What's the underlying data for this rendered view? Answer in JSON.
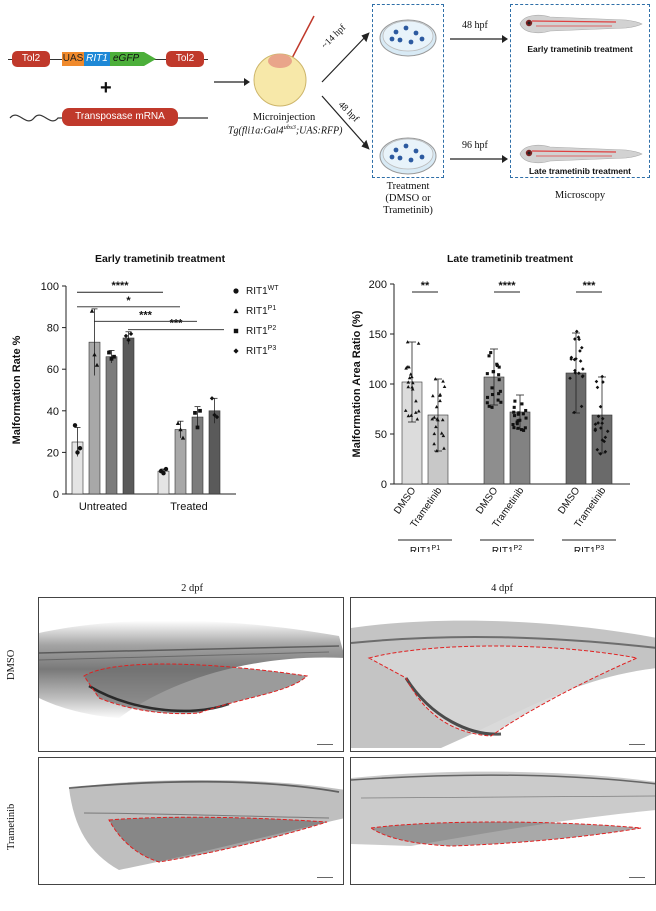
{
  "schematic": {
    "tol2_left": "Tol2",
    "uas": "UAS",
    "rit1": "RIT1",
    "egfp": "eGFP",
    "tol2_right": "Tol2",
    "plus": "+",
    "transposase": "Transposase mRNA",
    "microinjection": "Microinjection",
    "line_prefix": "Tg(fli1a:Gal4",
    "line_sup": "ubs3",
    "line_suffix": ";UAS:RFP)",
    "time_14": "~14 hpf",
    "time_48_diag": "48 hpf",
    "time_48": "48 hpf",
    "time_96": "96 hpf",
    "early_label": "Early trametinib treatment",
    "late_label": "Late trametinib treatment",
    "treatment_line1": "Treatment",
    "treatment_line2": "(DMSO or",
    "treatment_line3": "Trametinib)",
    "microscopy": "Microscopy"
  },
  "chart_data": [
    {
      "type": "bar",
      "title": "Early trametinib treatment",
      "ylabel": "Malformation Rate %",
      "ylim": [
        0,
        100
      ],
      "yticks": [
        "0",
        "20",
        "40",
        "60",
        "80",
        "100"
      ],
      "groups": [
        "Untreated",
        "Treated"
      ],
      "series": [
        {
          "name": "RIT1",
          "sup": "WT",
          "values": [
            25,
            11
          ],
          "err": [
            7,
            1
          ],
          "color": "#e4e4e4",
          "marker": "circle",
          "points": [
            [
              33,
              20,
              22
            ],
            [
              11,
              10,
              12
            ]
          ]
        },
        {
          "name": "RIT1",
          "sup": "P1",
          "values": [
            73,
            31
          ],
          "err": [
            16,
            4
          ],
          "color": "#a8a8a8",
          "marker": "triangle",
          "points": [
            [
              88,
              67,
              62
            ],
            [
              34,
              31,
              27
            ]
          ]
        },
        {
          "name": "RIT1",
          "sup": "P2",
          "values": [
            66,
            37
          ],
          "err": [
            3,
            5
          ],
          "color": "#7c7c7c",
          "marker": "square",
          "points": [
            [
              68,
              65,
              66
            ],
            [
              39,
              32,
              40
            ]
          ]
        },
        {
          "name": "RIT1",
          "sup": "P3",
          "values": [
            75,
            40
          ],
          "err": [
            3,
            6
          ],
          "color": "#5a5a5a",
          "marker": "diamond",
          "points": [
            [
              76,
              74,
              77
            ],
            [
              46,
              38,
              37
            ]
          ]
        }
      ],
      "significance": [
        "****",
        "*",
        "***",
        "***"
      ]
    },
    {
      "type": "bar",
      "title": "Late trametinib treatment",
      "ylabel": "Malformation Area Ratio (%)",
      "ylim": [
        0,
        200
      ],
      "yticks": [
        "0",
        "50",
        "100",
        "150",
        "200"
      ],
      "categories": [
        "DMSO",
        "Trametinib",
        "DMSO",
        "Trametinib",
        "DMSO",
        "Trametinib"
      ],
      "group_labels": [
        {
          "name": "RIT1",
          "sup": "P1"
        },
        {
          "name": "RIT1",
          "sup": "P2"
        },
        {
          "name": "RIT1",
          "sup": "P3"
        }
      ],
      "values": [
        102,
        69,
        107,
        72,
        111,
        69
      ],
      "err": [
        40,
        36,
        28,
        17,
        40,
        38
      ],
      "colors": [
        "#dcdcdc",
        "#c8c8c8",
        "#8e8e8e",
        "#828282",
        "#6a6a6a",
        "#6a6a6a"
      ],
      "markers": [
        "triangle",
        "triangle",
        "square",
        "square",
        "diamond",
        "diamond"
      ],
      "significance": [
        "**",
        "****",
        "***"
      ]
    }
  ],
  "panels": {
    "col1": "2 dpf",
    "col2": "4 dpf",
    "row1": "DMSO",
    "row2": "Trametinib"
  }
}
